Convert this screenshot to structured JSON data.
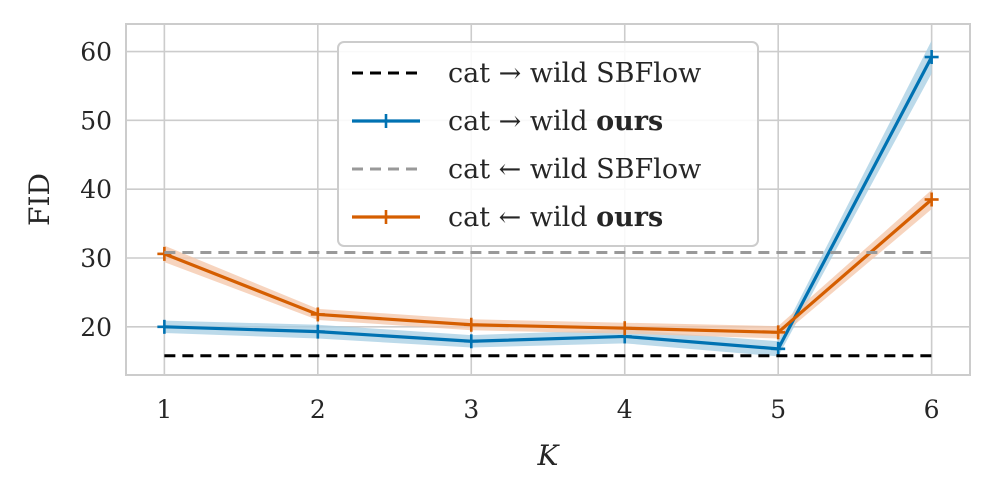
{
  "chart_data": {
    "type": "line",
    "title": "",
    "xlabel": "K",
    "ylabel": "FID",
    "x": [
      1,
      2,
      3,
      4,
      5,
      6
    ],
    "xlim": [
      0.75,
      6.25
    ],
    "ylim": [
      13,
      64
    ],
    "xticks": [
      "1",
      "2",
      "3",
      "4",
      "5",
      "6"
    ],
    "yticks": [
      "20",
      "30",
      "40",
      "50",
      "60"
    ],
    "grid": true,
    "legend_position": "top-center",
    "series": [
      {
        "name": "cat → wild SBFlow",
        "name_prefix": "cat → wild",
        "name_suffix": "SBFlow",
        "bold_suffix": false,
        "style": "dashed",
        "markers": false,
        "color": "#000000",
        "values": [
          15.8,
          15.8,
          15.8,
          15.8,
          15.8,
          15.8
        ]
      },
      {
        "name": "cat → wild ours",
        "name_prefix": "cat → wild",
        "name_suffix": "ours",
        "bold_suffix": true,
        "style": "solid",
        "markers": true,
        "color": "#0072b2",
        "band_color": "#a6cee3",
        "values": [
          20.0,
          19.3,
          17.9,
          18.6,
          16.8,
          59.2
        ],
        "band": [
          0.9,
          1.0,
          0.9,
          1.0,
          1.1,
          2.4
        ]
      },
      {
        "name": "cat ← wild SBFlow",
        "name_prefix": "cat ← wild",
        "name_suffix": "SBFlow",
        "bold_suffix": false,
        "style": "dashed",
        "markers": false,
        "color": "#999999",
        "values": [
          30.8,
          30.8,
          30.8,
          30.8,
          30.8,
          30.8
        ]
      },
      {
        "name": "cat ← wild ours",
        "name_prefix": "cat ← wild",
        "name_suffix": "ours",
        "bold_suffix": true,
        "style": "solid",
        "markers": true,
        "color": "#d55e00",
        "band_color": "#f4c5a8",
        "values": [
          30.6,
          21.8,
          20.3,
          19.8,
          19.2,
          38.5
        ],
        "band": [
          1.2,
          0.8,
          0.8,
          0.8,
          0.9,
          1.4
        ]
      }
    ]
  }
}
